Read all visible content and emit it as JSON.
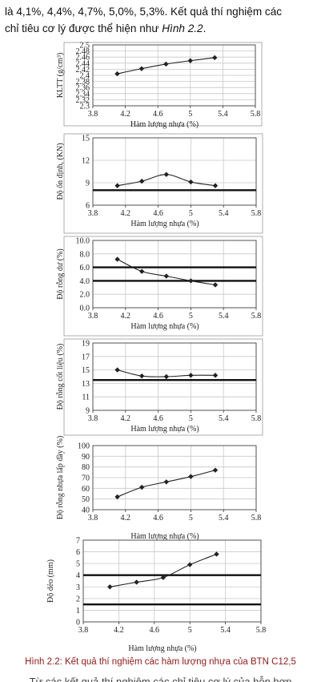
{
  "intro": {
    "line1": "là 4,1%, 4,4%, 4,7%, 5,0%, 5,3%. Kết quả thí nghiệm các",
    "line2_prefix": "chỉ tiêu cơ lý được thể hiện như ",
    "line2_ref": "Hình 2.2",
    "line2_suffix": "."
  },
  "caption": "Hình 2.2: Kết quả thí nghiệm các hàm lượng nhựa của BTN C12,5",
  "cutoff_text": "Từ các kết quả thí nghiệm các chỉ tiêu cơ lý của hỗn hợp",
  "colors": {
    "line": "#222222",
    "grid": "#c8c8c8",
    "marker": "#222222",
    "limit": "#111111",
    "caption": "#8a1b1b"
  },
  "chart_data": [
    {
      "type": "line",
      "ylabel": "KLTT (g/cm³)",
      "xlabel": "Hàm lượng nhựa (%)",
      "xlim": [
        3.8,
        5.8
      ],
      "ylim": [
        2.3,
        2.5
      ],
      "x_ticks": [
        "3.8",
        "4.2",
        "4.6",
        "5",
        "5.4",
        "5.8"
      ],
      "y_ticks": [
        "2.3",
        "2.32",
        "2.34",
        "2.36",
        "2.38",
        "2.4",
        "2.42",
        "2.44",
        "2.46",
        "2.48",
        "2.5"
      ],
      "grid": true,
      "x": [
        4.1,
        4.4,
        4.7,
        5.0,
        5.3
      ],
      "y": [
        2.405,
        2.422,
        2.437,
        2.448,
        2.458
      ],
      "limits": []
    },
    {
      "type": "line",
      "ylabel": "Độ ổn định, (KN)",
      "xlabel": "Hàm lượng nhựa (%)",
      "xlim": [
        3.8,
        5.8
      ],
      "ylim": [
        6,
        15
      ],
      "x_ticks": [
        "3.8",
        "4.2",
        "4.6",
        "5",
        "5.4",
        "5.8"
      ],
      "y_ticks": [
        "6",
        "9",
        "12",
        "15"
      ],
      "grid": true,
      "x": [
        4.1,
        4.4,
        4.7,
        5.0,
        5.3
      ],
      "y": [
        8.6,
        9.2,
        10.1,
        9.1,
        8.6
      ],
      "limits": [
        8
      ]
    },
    {
      "type": "line",
      "ylabel": "Độ rỗng dư (%)",
      "xlabel": "Hàm lượng nhựa (%)",
      "xlim": [
        3.8,
        5.8
      ],
      "ylim": [
        0,
        10
      ],
      "x_ticks": [
        "3.8",
        "4.2",
        "4.6",
        "5",
        "5.4",
        "5.8"
      ],
      "y_ticks": [
        "0.0",
        "2.0",
        "4.0",
        "6.0",
        "8.0",
        "10.0"
      ],
      "grid": true,
      "x": [
        4.1,
        4.4,
        4.7,
        5.0,
        5.3
      ],
      "y": [
        7.2,
        5.4,
        4.7,
        4.0,
        3.4
      ],
      "limits": [
        6,
        4
      ]
    },
    {
      "type": "line",
      "ylabel": "Độ rỗng cốt liệu (%)",
      "xlabel": "Hàm lượng nhựa (%)",
      "xlim": [
        3.8,
        5.8
      ],
      "ylim": [
        9,
        19
      ],
      "x_ticks": [
        "3.8",
        "4.2",
        "4.6",
        "5",
        "5.4",
        "5.8"
      ],
      "y_ticks": [
        "9",
        "11",
        "13",
        "15",
        "17",
        "19"
      ],
      "grid": true,
      "x": [
        4.1,
        4.4,
        4.7,
        5.0,
        5.3
      ],
      "y": [
        15.0,
        14.1,
        14.0,
        14.2,
        14.2
      ],
      "limits": [
        13.5
      ]
    },
    {
      "type": "line",
      "ylabel": "Độ rỗng nhựa lấp đầy (%)",
      "xlabel": "Hàm lượng nhựa (%)",
      "xlim": [
        3.8,
        5.8
      ],
      "ylim": [
        40,
        100
      ],
      "x_ticks": [
        "3.8",
        "4.2",
        "4.6",
        "5",
        "5.4",
        "5.8"
      ],
      "y_ticks": [
        "40",
        "50",
        "60",
        "70",
        "80",
        "90",
        "100"
      ],
      "grid": true,
      "x": [
        4.1,
        4.4,
        4.7,
        5.0,
        5.3
      ],
      "y": [
        52,
        61,
        66,
        71,
        77
      ],
      "limits": []
    },
    {
      "type": "line",
      "ylabel": "Độ dẻo (mm)",
      "xlabel": "Hàm lượng nhựa (%)",
      "xlim": [
        3.8,
        5.8
      ],
      "ylim": [
        0,
        7
      ],
      "x_ticks": [
        "3.8",
        "4.2",
        "4.6",
        "5",
        "5.4",
        "5.8"
      ],
      "y_ticks": [
        "0",
        "1",
        "2",
        "3",
        "4",
        "5",
        "6",
        "7"
      ],
      "grid": true,
      "x": [
        4.1,
        4.4,
        4.7,
        5.0,
        5.3
      ],
      "y": [
        3.0,
        3.4,
        3.8,
        4.9,
        5.8
      ],
      "limits": [
        4,
        1.5
      ]
    }
  ]
}
